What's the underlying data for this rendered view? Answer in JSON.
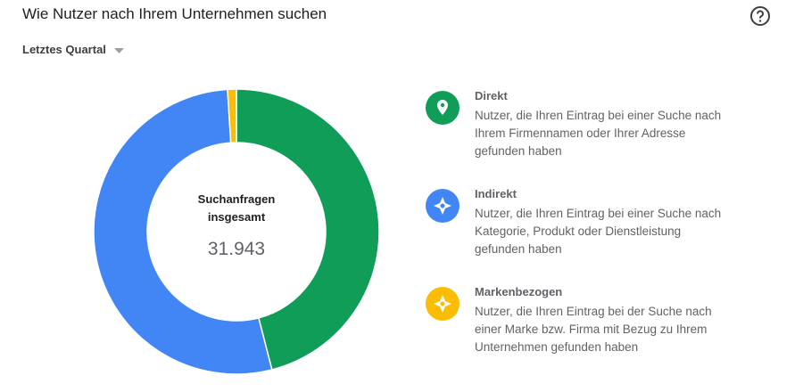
{
  "header": {
    "title": "Wie Nutzer nach Ihrem Unternehmen suchen",
    "period": "Letztes Quartal"
  },
  "chart_data": {
    "type": "donut",
    "center_label": "Suchanfragen insgesamt",
    "total": {
      "value": 31943,
      "label": "31.943"
    },
    "categories": [
      "Direkt",
      "Indirekt",
      "Markenbezogen"
    ],
    "descriptions": [
      "Nutzer, die Ihren Eintrag bei einer Suche nach Ihrem Firmennamen oder Ihrer Adresse gefunden haben",
      "Nutzer, die Ihren Eintrag bei einer Suche nach Kategorie, Produkt oder Dienstleistung gefunden haben",
      "Nutzer, die Ihren Eintrag bei der Suche nach einer Marke bzw. Firma mit Bezug zu Ihrem Unternehmen gefunden haben"
    ],
    "values": [
      46,
      53,
      1
    ],
    "colors": [
      "#0f9d58",
      "#4285f4",
      "#fbbc04"
    ]
  }
}
